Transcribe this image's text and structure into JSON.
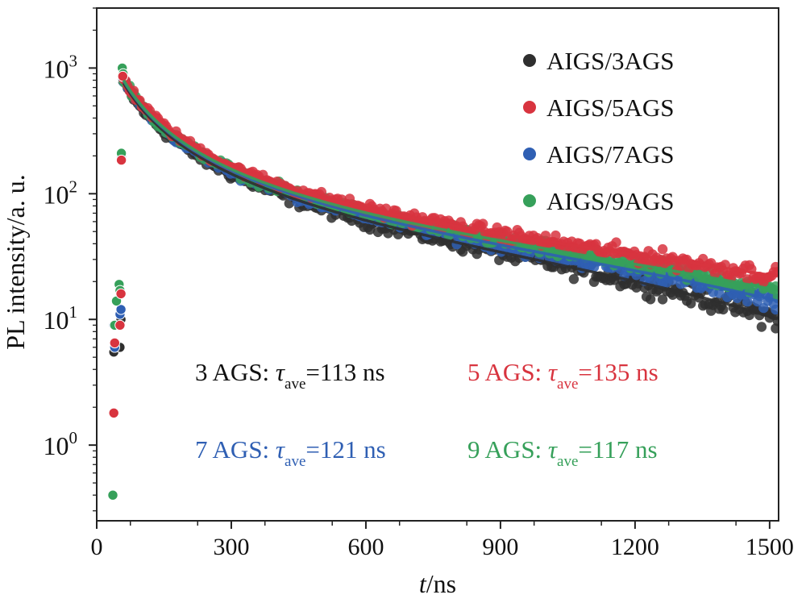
{
  "chart_data": {
    "type": "scatter",
    "xlabel_italic": "t",
    "xlabel_rest": "/ns",
    "ylabel": "PL intensity/a. u.",
    "xlim": [
      0,
      1520
    ],
    "ylim": [
      0.25,
      3000
    ],
    "yscale": "log",
    "grid": false,
    "legend_position": "top-right",
    "x_ticks": [
      0,
      300,
      600,
      900,
      1200,
      1500
    ],
    "x_tick_labels": [
      "0",
      "300",
      "600",
      "900",
      "1200",
      "1500"
    ],
    "y_ticks": [
      1,
      10,
      100,
      1000
    ],
    "y_tick_base": "10",
    "y_tick_exponents": [
      "0",
      "1",
      "2",
      "3"
    ],
    "series": [
      {
        "name": "AIGS/3AGS",
        "color": "#2f2f2f",
        "tau_ns": 113,
        "rise_points": [
          [
            38,
            5.5
          ],
          [
            40,
            6.0
          ],
          [
            52,
            6.0
          ],
          [
            54,
            10.0
          ],
          [
            55,
            190
          ],
          [
            58,
            780
          ]
        ],
        "decay": {
          "x_start": 60,
          "x_end": 1520,
          "y_start": 760,
          "y_end": 10
        },
        "scatter_spread": 0.09
      },
      {
        "name": "AIGS/5AGS",
        "color": "#d8343f",
        "tau_ns": 135,
        "rise_points": [
          [
            38,
            1.8
          ],
          [
            40,
            6.5
          ],
          [
            52,
            9.0
          ],
          [
            54,
            16.0
          ],
          [
            55,
            185
          ],
          [
            58,
            860
          ]
        ],
        "decay": {
          "x_start": 60,
          "x_end": 1520,
          "y_start": 820,
          "y_end": 22
        },
        "scatter_spread": 0.07
      },
      {
        "name": "AIGS/7AGS",
        "color": "#2f5fb3",
        "tau_ns": 121,
        "rise_points": [
          [
            38,
            9.0
          ],
          [
            40,
            6.0
          ],
          [
            52,
            11.0
          ],
          [
            54,
            12.0
          ],
          [
            55,
            195
          ],
          [
            58,
            820
          ]
        ],
        "decay": {
          "x_start": 60,
          "x_end": 1520,
          "y_start": 790,
          "y_end": 14
        },
        "scatter_spread": 0.07
      },
      {
        "name": "AIGS/9AGS",
        "color": "#36a05a",
        "tau_ns": 117,
        "rise_points": [
          [
            36,
            0.4
          ],
          [
            40,
            9.0
          ],
          [
            44,
            14.0
          ],
          [
            50,
            19.0
          ],
          [
            52,
            17.0
          ],
          [
            55,
            210
          ],
          [
            57,
            1000
          ],
          [
            59,
            900
          ]
        ],
        "decay": {
          "x_start": 60,
          "x_end": 1520,
          "y_start": 800,
          "y_end": 17
        },
        "scatter_spread": 0.07
      }
    ],
    "annotations": [
      {
        "prefix": "3 AGS: ",
        "symbol": "τ",
        "subscript": "ave",
        "suffix": "=113 ns",
        "color": "#111111"
      },
      {
        "prefix": "5 AGS: ",
        "symbol": "τ",
        "subscript": "ave",
        "suffix": "=135 ns",
        "color": "#d8343f"
      },
      {
        "prefix": "7 AGS: ",
        "symbol": "τ",
        "subscript": "ave",
        "suffix": "=121 ns",
        "color": "#2f5fb3"
      },
      {
        "prefix": "9 AGS: ",
        "symbol": "τ",
        "subscript": "ave",
        "suffix": "=117 ns",
        "color": "#36a05a"
      }
    ]
  }
}
